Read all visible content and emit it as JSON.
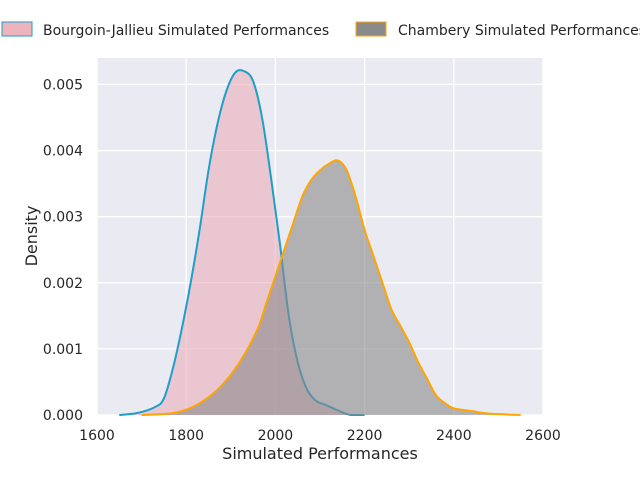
{
  "chart_data": {
    "type": "area",
    "xlabel": "Simulated Performances",
    "ylabel": "Density",
    "xlim": [
      1600,
      2600
    ],
    "ylim": [
      0,
      0.0054
    ],
    "xticks": [
      1600,
      1800,
      2000,
      2200,
      2400,
      2600
    ],
    "yticks": [
      0.0,
      0.001,
      0.002,
      0.003,
      0.004,
      0.005
    ],
    "grid": true,
    "legend_position": "top",
    "series": [
      {
        "name": "Bourgoin-Jallieu Simulated Performances",
        "fill_color": "#e8a1ad",
        "line_color": "#1f9ec9",
        "x": [
          1650,
          1690,
          1730,
          1750,
          1770,
          1790,
          1810,
          1830,
          1850,
          1870,
          1890,
          1910,
          1930,
          1950,
          1970,
          1990,
          2010,
          2030,
          2050,
          2070,
          2090,
          2110,
          2130,
          2150,
          2170,
          2200
        ],
        "y": [
          0.0,
          3e-05,
          0.00012,
          0.00025,
          0.0007,
          0.0013,
          0.002,
          0.0028,
          0.0037,
          0.0044,
          0.0049,
          0.00518,
          0.0052,
          0.00505,
          0.0045,
          0.0036,
          0.0026,
          0.0015,
          0.0008,
          0.0004,
          0.00022,
          0.00016,
          0.0001,
          4e-05,
          0.0,
          0.0
        ]
      },
      {
        "name": "Chambery Simulated Performances",
        "fill_color": "#8a8a8a",
        "line_color": "#ffa500",
        "x": [
          1700,
          1760,
          1800,
          1840,
          1880,
          1920,
          1960,
          1980,
          2000,
          2020,
          2040,
          2060,
          2080,
          2100,
          2120,
          2140,
          2160,
          2180,
          2200,
          2220,
          2240,
          2260,
          2280,
          2300,
          2320,
          2340,
          2360,
          2380,
          2400,
          2440,
          2480,
          2550
        ],
        "y": [
          0.0,
          2e-05,
          8e-05,
          0.00022,
          0.00045,
          0.0008,
          0.0013,
          0.0017,
          0.0021,
          0.0025,
          0.0029,
          0.0033,
          0.00355,
          0.0037,
          0.0038,
          0.00385,
          0.0037,
          0.0033,
          0.0028,
          0.0024,
          0.002,
          0.0016,
          0.00135,
          0.0011,
          0.0008,
          0.00055,
          0.0003,
          0.00018,
          0.0001,
          6e-05,
          2e-05,
          0.0
        ]
      }
    ]
  }
}
